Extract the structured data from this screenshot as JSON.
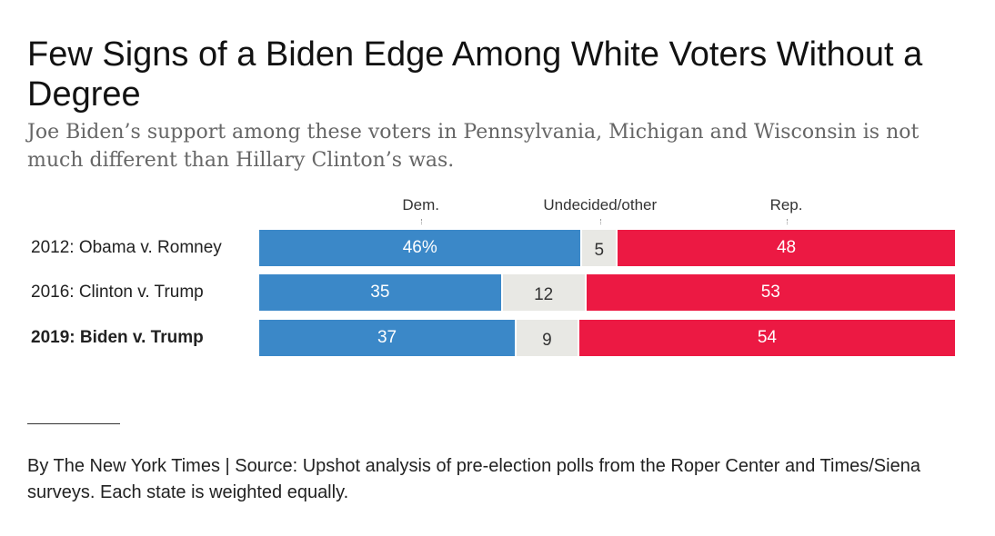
{
  "title": "Few Signs of a Biden Edge Among White Voters Without a Degree",
  "subtitle": "Joe Biden’s support among these voters in Pennsylvania, Michigan and Wisconsin is not much different than Hillary Clinton’s was.",
  "source": "By The New York Times | Source: Upshot analysis of pre-election polls from the Roper Center and Times/Siena surveys. Each state is weighted equally.",
  "colors": {
    "dem": "#3b88c8",
    "undecided": "#e8e8e4",
    "rep": "#ec1943"
  },
  "chart_data": {
    "type": "bar",
    "orientation": "horizontal",
    "stacked": true,
    "normalized_percent": true,
    "column_headers": [
      "Dem.",
      "Undecided/other",
      "Rep."
    ],
    "categories": [
      "2012: Obama v. Romney",
      "2016: Clinton v. Trump",
      "2019: Biden v. Trump"
    ],
    "highlighted_category": "2019: Biden v. Trump",
    "series": [
      {
        "name": "Dem.",
        "values": [
          46,
          35,
          37
        ],
        "labels": [
          "46%",
          "35",
          "37"
        ]
      },
      {
        "name": "Undecided/other",
        "values": [
          5,
          12,
          9
        ],
        "labels": [
          "5",
          "12",
          "9"
        ]
      },
      {
        "name": "Rep.",
        "values": [
          48,
          53,
          54
        ],
        "labels": [
          "48",
          "53",
          "54"
        ]
      }
    ],
    "xlim": [
      0,
      100
    ],
    "grid": false
  }
}
